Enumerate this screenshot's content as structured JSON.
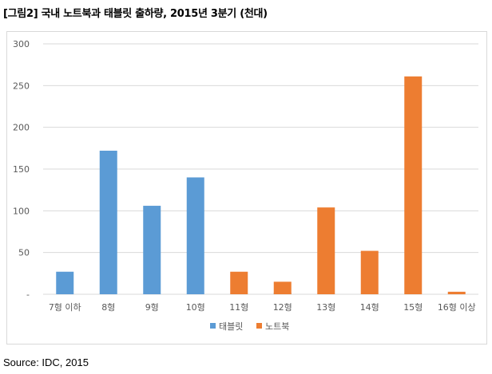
{
  "page": {
    "title": "[그림2] 국내 노트북과 태블릿 출하량, 2015년 3분기 (천대)",
    "source": "Source: IDC, 2015"
  },
  "chart_data": {
    "type": "bar",
    "title": "[그림2] 국내 노트북과 태블릿 출하량, 2015년 3분기 (천대)",
    "xlabel": "",
    "ylabel": "",
    "ylim": [
      0,
      300
    ],
    "yticks": [
      0,
      50,
      100,
      150,
      200,
      250,
      300
    ],
    "ytick_labels": [
      "-",
      "50",
      "100",
      "150",
      "200",
      "250",
      "300"
    ],
    "grid": true,
    "legend_position": "bottom",
    "categories": [
      "7형 이하",
      "8형",
      "9형",
      "10형",
      "11형",
      "12형",
      "13형",
      "14형",
      "15형",
      "16형 이상"
    ],
    "series": [
      {
        "name": "태블릿",
        "color": "#5b9bd5",
        "values": [
          27,
          172,
          106,
          140,
          0,
          2,
          0,
          0,
          0,
          0
        ]
      },
      {
        "name": "노트북",
        "color": "#ed7d31",
        "values": [
          0,
          0,
          0,
          0,
          27,
          15,
          104,
          52,
          261,
          3
        ]
      }
    ]
  }
}
